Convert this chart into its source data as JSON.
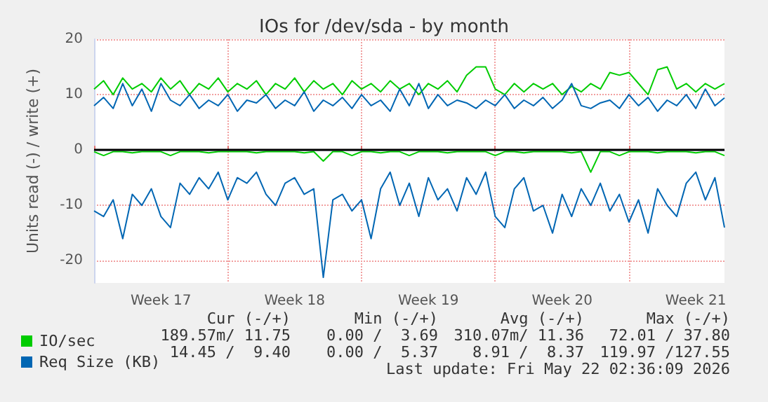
{
  "chart_data": {
    "type": "line",
    "title": "IOs for /dev/sda - by month",
    "ylabel": "Units read (-) / write (+)",
    "ylim": [
      -24,
      20
    ],
    "yticks": [
      -20,
      -10,
      0,
      10,
      20
    ],
    "categories": [
      null,
      null,
      null,
      null,
      null,
      null,
      null,
      "Week 17",
      null,
      null,
      null,
      null,
      null,
      null,
      null,
      null,
      null,
      null,
      null,
      null,
      null,
      "Week 18",
      null,
      null,
      null,
      null,
      null,
      null,
      null,
      null,
      null,
      null,
      null,
      null,
      null,
      "Week 19",
      null,
      null,
      null,
      null,
      null,
      null,
      null,
      null,
      null,
      null,
      null,
      null,
      null,
      "Week 20",
      null,
      null,
      null,
      null,
      null,
      null,
      null,
      null,
      null,
      null,
      null,
      null,
      null,
      "Week 21",
      null,
      null,
      null
    ],
    "grid": true,
    "legend": "bottom left",
    "marker": "none",
    "line_style": "solid",
    "series": [
      {
        "name": "IO/sec",
        "color": "#00cc00",
        "values": [
          11,
          12.5,
          10,
          13,
          11,
          12,
          10.5,
          13,
          11,
          12.5,
          10,
          12,
          11,
          13,
          10.5,
          12,
          11,
          12.5,
          10,
          12,
          11,
          13,
          10.5,
          12.5,
          11,
          12,
          10,
          12.5,
          11,
          12,
          10.5,
          12.5,
          11,
          12,
          10,
          12,
          11,
          12.5,
          10.5,
          13.5,
          15,
          15,
          11,
          10,
          12,
          10.5,
          12,
          11,
          12,
          10,
          11.5,
          10.5,
          12,
          11,
          14,
          13.5,
          14,
          12,
          10,
          14.5,
          15,
          11,
          12,
          10.5,
          12,
          11,
          12
        ]
      },
      {
        "color": "#00cc00",
        "values": [
          -0.3,
          -1,
          -0.3,
          -0.3,
          -0.5,
          -0.3,
          -0.3,
          -0.3,
          -1,
          -0.3,
          -0.3,
          -0.3,
          -0.5,
          -0.3,
          -0.3,
          -0.3,
          -0.3,
          -0.5,
          -0.3,
          -0.3,
          -0.3,
          -0.3,
          -0.5,
          -0.3,
          -2,
          -0.3,
          -0.3,
          -1,
          -0.3,
          -0.3,
          -0.5,
          -0.3,
          -0.3,
          -1,
          -0.3,
          -0.3,
          -0.3,
          -0.5,
          -0.3,
          -0.3,
          -0.3,
          -0.3,
          -1,
          -0.3,
          -0.3,
          -0.5,
          -0.3,
          -0.3,
          -0.3,
          -0.3,
          -0.5,
          -0.3,
          -4,
          -0.3,
          -0.3,
          -1,
          -0.3,
          -0.3,
          -0.3,
          -0.5,
          -0.3,
          -0.3,
          -0.3,
          -0.5,
          -0.3,
          -0.3,
          -1
        ]
      },
      {
        "name": "Req Size (KB)",
        "color": "#0066b3",
        "values": [
          8,
          9.5,
          7.5,
          12,
          8,
          11,
          7,
          12,
          9,
          8,
          10,
          7.5,
          9,
          8,
          10,
          7,
          9,
          8.5,
          10,
          7.5,
          9,
          8,
          10.5,
          7,
          9,
          8,
          9.5,
          7.5,
          10,
          8,
          9,
          7,
          11,
          8,
          12,
          7.5,
          10,
          8,
          9,
          8.5,
          7.5,
          9,
          8,
          10,
          7.5,
          9,
          8,
          9.5,
          7.5,
          9,
          12,
          8,
          7.5,
          8.5,
          9,
          7.5,
          10,
          8,
          9.5,
          7,
          9,
          8,
          10,
          7.5,
          11,
          8,
          9.4
        ]
      },
      {
        "color": "#0066b3",
        "values": [
          -11,
          -12,
          -9,
          -16,
          -8,
          -10,
          -7,
          -12,
          -14,
          -6,
          -8,
          -5,
          -7,
          -4,
          -9,
          -5,
          -6,
          -4,
          -8,
          -10,
          -6,
          -5,
          -8,
          -7,
          -23,
          -9,
          -8,
          -11,
          -9,
          -16,
          -7,
          -4,
          -10,
          -6,
          -12,
          -5,
          -9,
          -7,
          -11,
          -5,
          -8,
          -4,
          -12,
          -14,
          -7,
          -5,
          -11,
          -10,
          -15,
          -8,
          -12,
          -7,
          -10,
          -6,
          -11,
          -8,
          -13,
          -9,
          -15,
          -7,
          -10,
          -12,
          -6,
          -4,
          -9,
          -5,
          -14
        ]
      }
    ],
    "ref_lines": [
      {
        "axis": "y",
        "value": 0,
        "color": "#000000"
      }
    ],
    "annotations": [
      "Cur (-/+)",
      "Min (-/+)",
      "Avg (-/+)",
      "Max (-/+)",
      "189.57m/ 11.75",
      "0.00 /  3.69",
      "310.07m/ 11.36",
      "72.01 / 37.80",
      "14.45 /  9.40",
      "0.00 /  5.37",
      "8.91 /  8.37",
      "119.97 /127.55",
      "Last update: Fri May 22 02:36:09 2026"
    ]
  }
}
